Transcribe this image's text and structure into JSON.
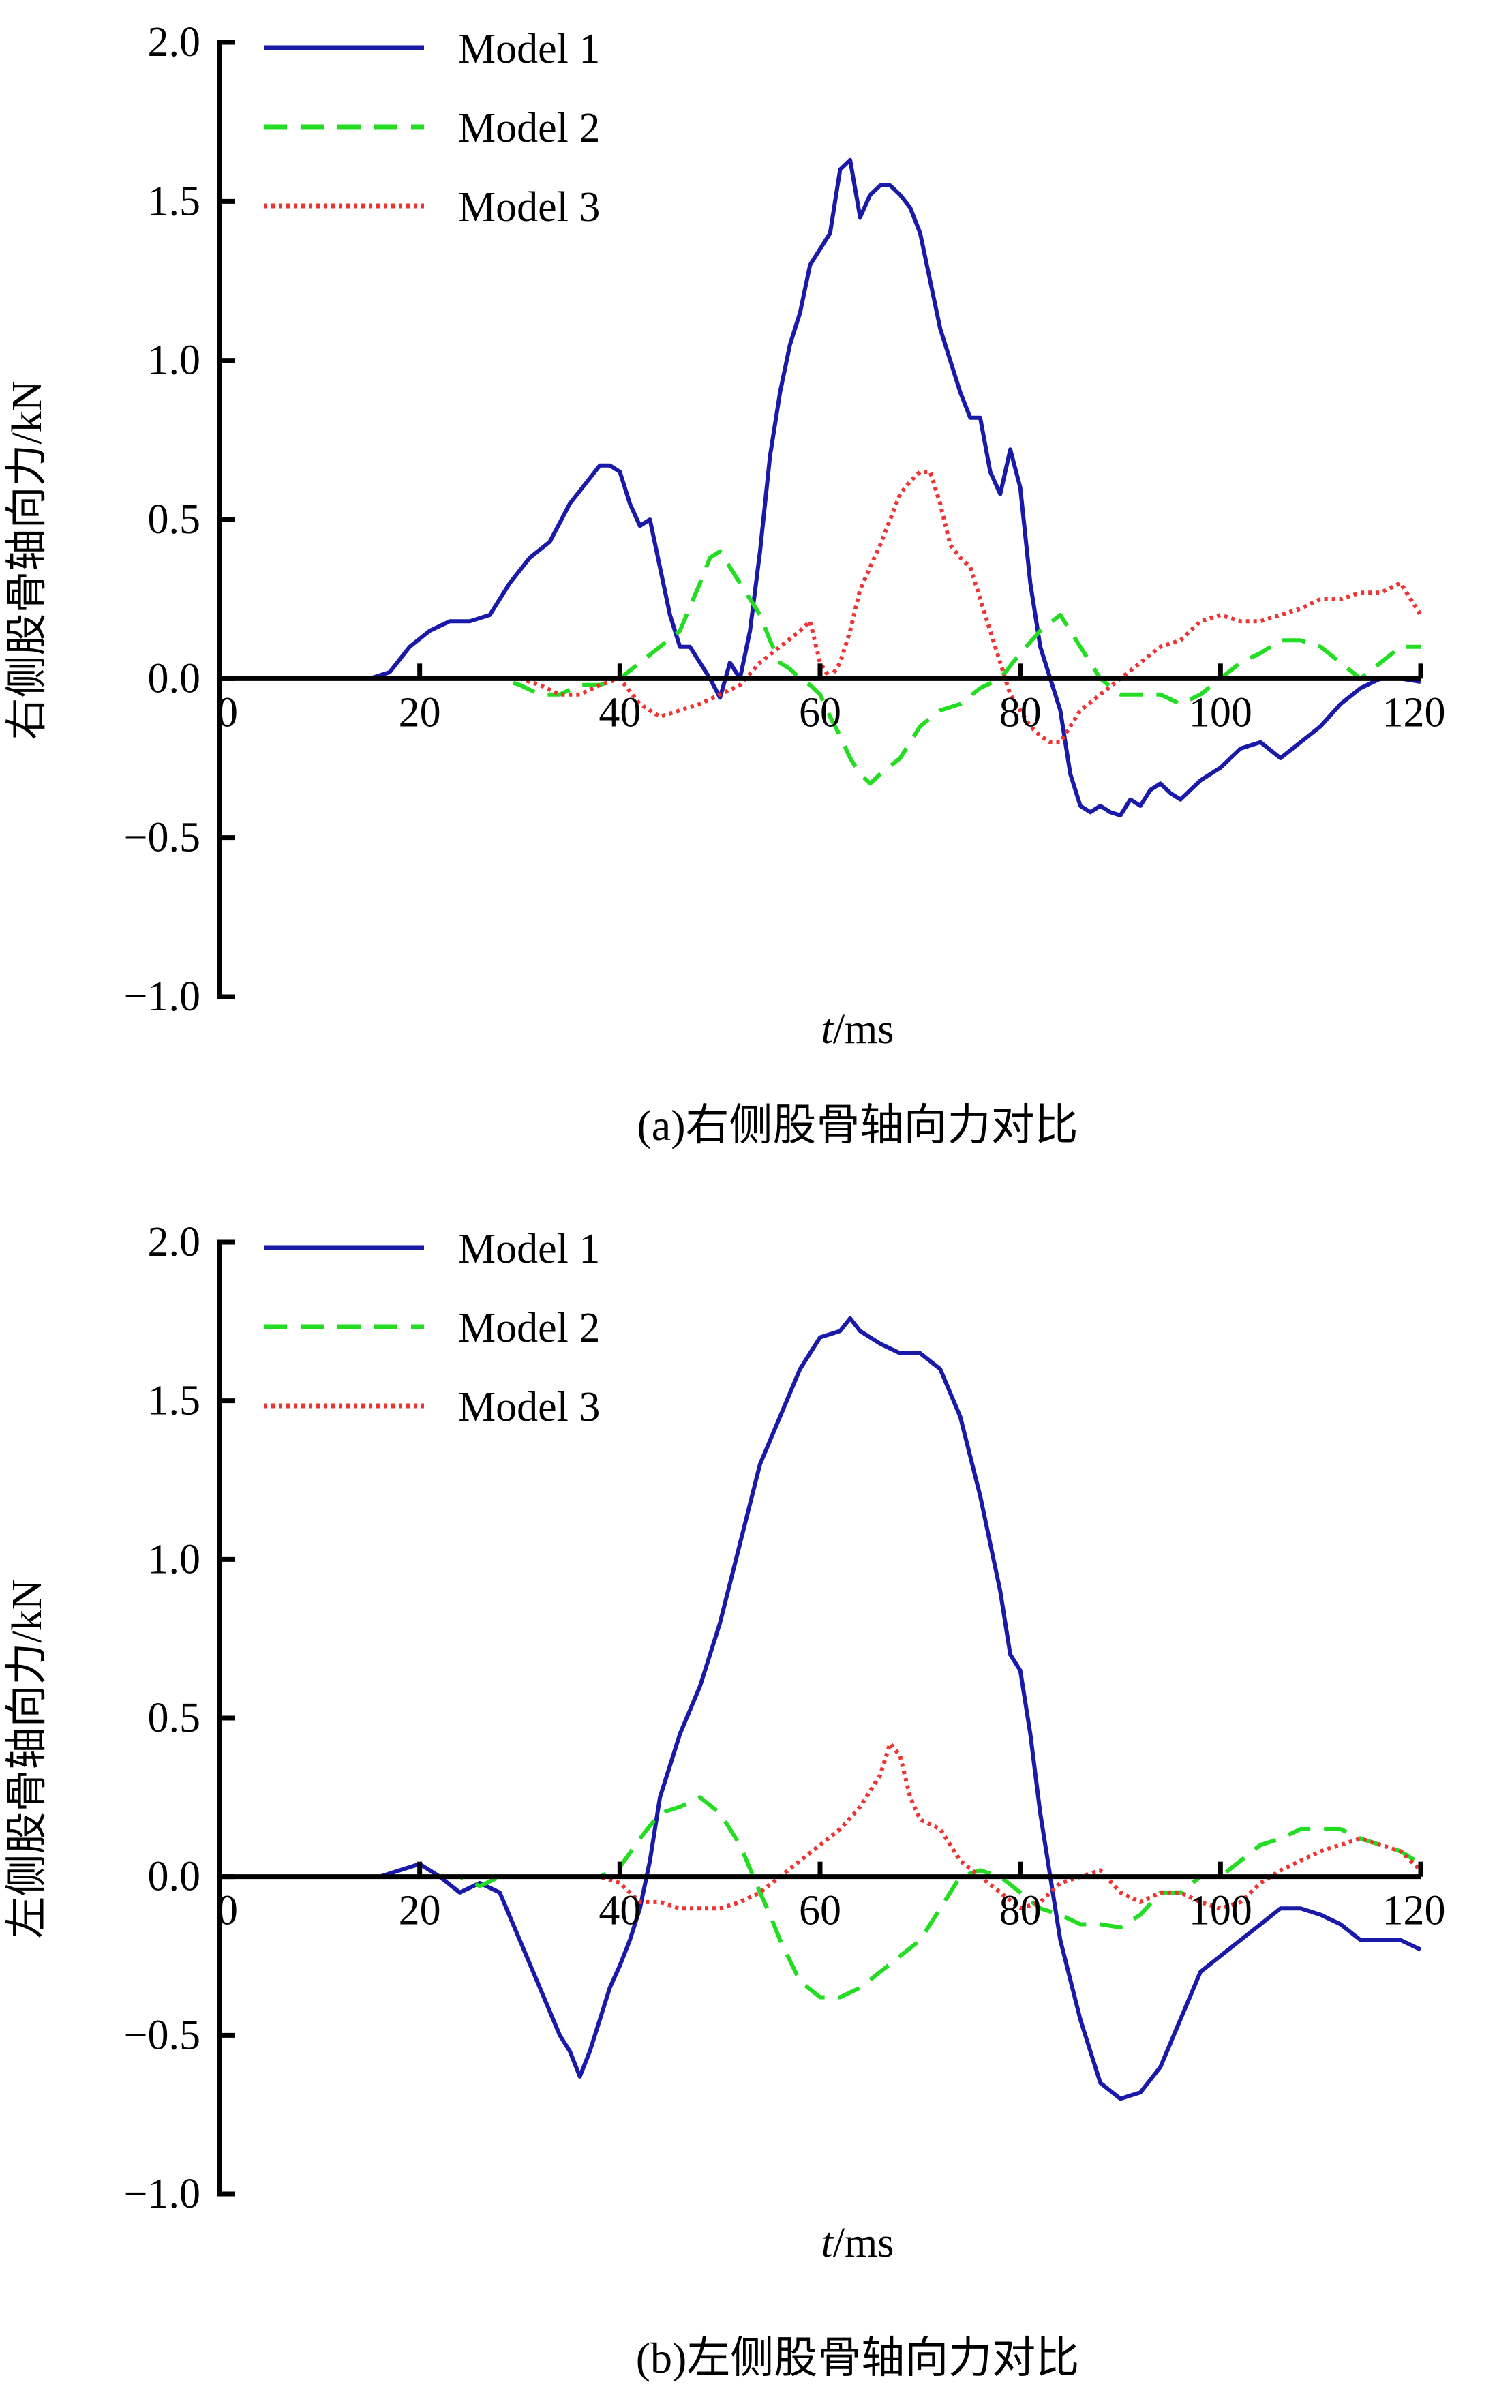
{
  "chart_data": [
    {
      "type": "line",
      "caption": "(a)右侧股骨轴向力对比",
      "xlabel_italic": "t",
      "xlabel_unit": "/ms",
      "ylabel": "右侧股骨轴向力/kN",
      "xlim": [
        0,
        120
      ],
      "ylim": [
        -1.0,
        2.0
      ],
      "xticks": [
        "0",
        "20",
        "40",
        "60",
        "80",
        "100",
        "120"
      ],
      "xtick_values": [
        0,
        20,
        40,
        60,
        80,
        100,
        120
      ],
      "yticks": [
        "2.0",
        "1.5",
        "1.0",
        "0.5",
        "0.0",
        "−0.5",
        "−1.0"
      ],
      "ytick_values": [
        2.0,
        1.5,
        1.0,
        0.5,
        0.0,
        -0.5,
        -1.0
      ],
      "grid": false,
      "legend_position": "top-left",
      "series": [
        {
          "name": "Model 1",
          "color": "#1a1aa8",
          "style": "solid",
          "x": [
            0,
            15,
            17,
            19,
            21,
            23,
            25,
            27,
            29,
            31,
            33,
            35,
            37,
            38,
            39,
            40,
            41,
            42,
            43,
            44,
            45,
            46,
            47,
            48,
            49,
            50,
            51,
            52,
            53,
            54,
            55,
            56,
            57,
            58,
            59,
            60,
            61,
            62,
            63,
            64,
            65,
            66,
            67,
            68,
            69,
            70,
            71,
            72,
            73,
            74,
            75,
            76,
            77,
            78,
            79,
            80,
            81,
            82,
            83,
            84,
            85,
            86,
            87,
            88,
            89,
            90,
            91,
            92,
            93,
            94,
            95,
            96,
            97,
            98,
            100,
            102,
            104,
            106,
            108,
            110,
            112,
            114,
            116,
            118,
            120
          ],
          "y": [
            0,
            0,
            0.02,
            0.1,
            0.15,
            0.18,
            0.18,
            0.2,
            0.3,
            0.38,
            0.43,
            0.55,
            0.63,
            0.67,
            0.67,
            0.65,
            0.55,
            0.48,
            0.5,
            0.35,
            0.2,
            0.1,
            0.1,
            0.05,
            0.0,
            -0.06,
            0.05,
            0.0,
            0.15,
            0.4,
            0.7,
            0.9,
            1.05,
            1.15,
            1.3,
            1.35,
            1.4,
            1.6,
            1.63,
            1.45,
            1.52,
            1.55,
            1.55,
            1.52,
            1.48,
            1.4,
            1.25,
            1.1,
            1.0,
            0.9,
            0.82,
            0.82,
            0.65,
            0.58,
            0.72,
            0.6,
            0.3,
            0.1,
            0.0,
            -0.1,
            -0.3,
            -0.4,
            -0.42,
            -0.4,
            -0.42,
            -0.43,
            -0.38,
            -0.4,
            -0.35,
            -0.33,
            -0.36,
            -0.38,
            -0.35,
            -0.32,
            -0.28,
            -0.22,
            -0.2,
            -0.25,
            -0.2,
            -0.15,
            -0.08,
            -0.03,
            0.0,
            0.0,
            -0.01
          ]
        },
        {
          "name": "Model 2",
          "color": "#22dd22",
          "style": "dashed",
          "x": [
            0,
            28,
            30,
            32,
            34,
            36,
            38,
            40,
            42,
            44,
            46,
            48,
            49,
            50,
            51,
            52,
            53,
            54,
            55,
            56,
            57,
            58,
            59,
            60,
            61,
            62,
            63,
            64,
            65,
            66,
            68,
            70,
            72,
            74,
            76,
            78,
            80,
            82,
            84,
            86,
            88,
            90,
            92,
            94,
            96,
            98,
            100,
            102,
            104,
            106,
            108,
            110,
            112,
            114,
            116,
            118,
            120
          ],
          "y": [
            0,
            0,
            -0.02,
            -0.05,
            -0.05,
            -0.02,
            -0.02,
            0.0,
            0.05,
            0.1,
            0.15,
            0.3,
            0.38,
            0.4,
            0.35,
            0.3,
            0.25,
            0.2,
            0.12,
            0.05,
            0.03,
            0.0,
            -0.02,
            -0.05,
            -0.12,
            -0.18,
            -0.25,
            -0.3,
            -0.33,
            -0.3,
            -0.25,
            -0.15,
            -0.1,
            -0.08,
            -0.03,
            0.0,
            0.08,
            0.15,
            0.2,
            0.1,
            0.0,
            -0.05,
            -0.05,
            -0.05,
            -0.08,
            -0.05,
            0.0,
            0.05,
            0.08,
            0.12,
            0.12,
            0.1,
            0.05,
            0.0,
            0.05,
            0.1,
            0.1
          ]
        },
        {
          "name": "Model 3",
          "color": "#ee3333",
          "style": "dotted",
          "x": [
            0,
            30,
            32,
            34,
            36,
            38,
            40,
            42,
            44,
            46,
            48,
            50,
            52,
            54,
            56,
            58,
            59,
            60,
            61,
            62,
            63,
            64,
            65,
            66,
            67,
            68,
            69,
            70,
            71,
            72,
            73,
            74,
            75,
            76,
            77,
            78,
            79,
            80,
            81,
            82,
            83,
            84,
            85,
            86,
            88,
            90,
            92,
            94,
            96,
            98,
            100,
            102,
            104,
            106,
            108,
            110,
            112,
            114,
            116,
            118,
            120
          ],
          "y": [
            0,
            0,
            -0.02,
            -0.05,
            -0.05,
            -0.02,
            0.0,
            -0.08,
            -0.12,
            -0.1,
            -0.08,
            -0.05,
            -0.02,
            0.05,
            0.1,
            0.15,
            0.18,
            0.05,
            0.0,
            0.05,
            0.15,
            0.28,
            0.35,
            0.42,
            0.5,
            0.58,
            0.62,
            0.65,
            0.65,
            0.55,
            0.42,
            0.38,
            0.35,
            0.25,
            0.15,
            0.05,
            -0.05,
            -0.1,
            -0.15,
            -0.18,
            -0.2,
            -0.2,
            -0.15,
            -0.1,
            -0.05,
            0.0,
            0.05,
            0.1,
            0.12,
            0.18,
            0.2,
            0.18,
            0.18,
            0.2,
            0.22,
            0.25,
            0.25,
            0.27,
            0.27,
            0.3,
            0.2
          ]
        }
      ]
    },
    {
      "type": "line",
      "caption": "(b)左侧股骨轴向力对比",
      "xlabel_italic": "t",
      "xlabel_unit": "/ms",
      "ylabel": "左侧股骨轴向力/kN",
      "xlim": [
        0,
        120
      ],
      "ylim": [
        -1.0,
        2.0
      ],
      "xticks": [
        "0",
        "20",
        "40",
        "60",
        "80",
        "100",
        "120"
      ],
      "xtick_values": [
        0,
        20,
        40,
        60,
        80,
        100,
        120
      ],
      "yticks": [
        "2.0",
        "1.5",
        "1.0",
        "0.5",
        "0.0",
        "−0.5",
        "−1.0"
      ],
      "ytick_values": [
        2.0,
        1.5,
        1.0,
        0.5,
        0.0,
        -0.5,
        -1.0
      ],
      "grid": false,
      "legend_position": "top-left",
      "series": [
        {
          "name": "Model 1",
          "color": "#1a1aa8",
          "style": "solid",
          "x": [
            0,
            16,
            18,
            20,
            22,
            24,
            26,
            28,
            30,
            32,
            34,
            35,
            36,
            37,
            38,
            39,
            40,
            41,
            42,
            43,
            44,
            45,
            46,
            48,
            50,
            52,
            54,
            56,
            58,
            60,
            62,
            63,
            64,
            66,
            68,
            70,
            72,
            74,
            76,
            78,
            79,
            80,
            81,
            82,
            83,
            84,
            86,
            88,
            90,
            92,
            94,
            96,
            98,
            100,
            102,
            104,
            106,
            108,
            110,
            112,
            114,
            116,
            118,
            120
          ],
          "y": [
            0,
            0,
            0.02,
            0.04,
            0.0,
            -0.05,
            -0.02,
            -0.05,
            -0.2,
            -0.35,
            -0.5,
            -0.55,
            -0.63,
            -0.55,
            -0.45,
            -0.35,
            -0.28,
            -0.2,
            -0.1,
            0.05,
            0.25,
            0.35,
            0.45,
            0.6,
            0.8,
            1.05,
            1.3,
            1.45,
            1.6,
            1.7,
            1.72,
            1.76,
            1.72,
            1.68,
            1.65,
            1.65,
            1.6,
            1.45,
            1.2,
            0.9,
            0.7,
            0.65,
            0.45,
            0.2,
            0.0,
            -0.2,
            -0.45,
            -0.65,
            -0.7,
            -0.68,
            -0.6,
            -0.45,
            -0.3,
            -0.25,
            -0.2,
            -0.15,
            -0.1,
            -0.1,
            -0.12,
            -0.15,
            -0.2,
            -0.2,
            -0.2,
            -0.23
          ]
        },
        {
          "name": "Model 2",
          "color": "#22dd22",
          "style": "dashed",
          "x": [
            0,
            24,
            26,
            28,
            30,
            32,
            34,
            36,
            38,
            40,
            42,
            44,
            46,
            48,
            50,
            52,
            54,
            55,
            56,
            58,
            60,
            62,
            64,
            66,
            68,
            70,
            72,
            74,
            76,
            78,
            80,
            82,
            84,
            86,
            88,
            90,
            92,
            94,
            96,
            98,
            100,
            102,
            104,
            106,
            108,
            110,
            112,
            114,
            116,
            118,
            120
          ],
          "y": [
            0,
            0,
            -0.03,
            0.0,
            0.0,
            0.0,
            0.0,
            0.0,
            0.0,
            0.03,
            0.12,
            0.2,
            0.22,
            0.25,
            0.2,
            0.1,
            -0.05,
            -0.12,
            -0.2,
            -0.33,
            -0.38,
            -0.38,
            -0.35,
            -0.3,
            -0.25,
            -0.2,
            -0.1,
            0.0,
            0.02,
            0.0,
            -0.05,
            -0.1,
            -0.12,
            -0.15,
            -0.15,
            -0.16,
            -0.12,
            -0.05,
            -0.05,
            0.0,
            0.0,
            0.05,
            0.1,
            0.12,
            0.15,
            0.15,
            0.15,
            0.12,
            0.1,
            0.08,
            0.04
          ]
        },
        {
          "name": "Model 3",
          "color": "#ee3333",
          "style": "dotted",
          "x": [
            0,
            36,
            38,
            40,
            42,
            44,
            46,
            48,
            50,
            52,
            54,
            56,
            58,
            60,
            62,
            64,
            66,
            67,
            68,
            69,
            70,
            72,
            74,
            76,
            78,
            80,
            82,
            84,
            86,
            88,
            90,
            92,
            94,
            96,
            98,
            100,
            102,
            104,
            106,
            108,
            110,
            112,
            114,
            116,
            118,
            120
          ],
          "y": [
            0,
            0,
            0.0,
            -0.02,
            -0.08,
            -0.08,
            -0.1,
            -0.1,
            -0.1,
            -0.08,
            -0.05,
            0.0,
            0.05,
            0.1,
            0.15,
            0.22,
            0.32,
            0.42,
            0.38,
            0.25,
            0.18,
            0.15,
            0.05,
            0.0,
            -0.05,
            -0.1,
            -0.08,
            -0.02,
            0.0,
            0.02,
            -0.05,
            -0.08,
            -0.05,
            -0.05,
            -0.08,
            -0.1,
            -0.08,
            -0.02,
            0.02,
            0.05,
            0.08,
            0.1,
            0.12,
            0.1,
            0.08,
            0.02
          ]
        }
      ]
    }
  ]
}
